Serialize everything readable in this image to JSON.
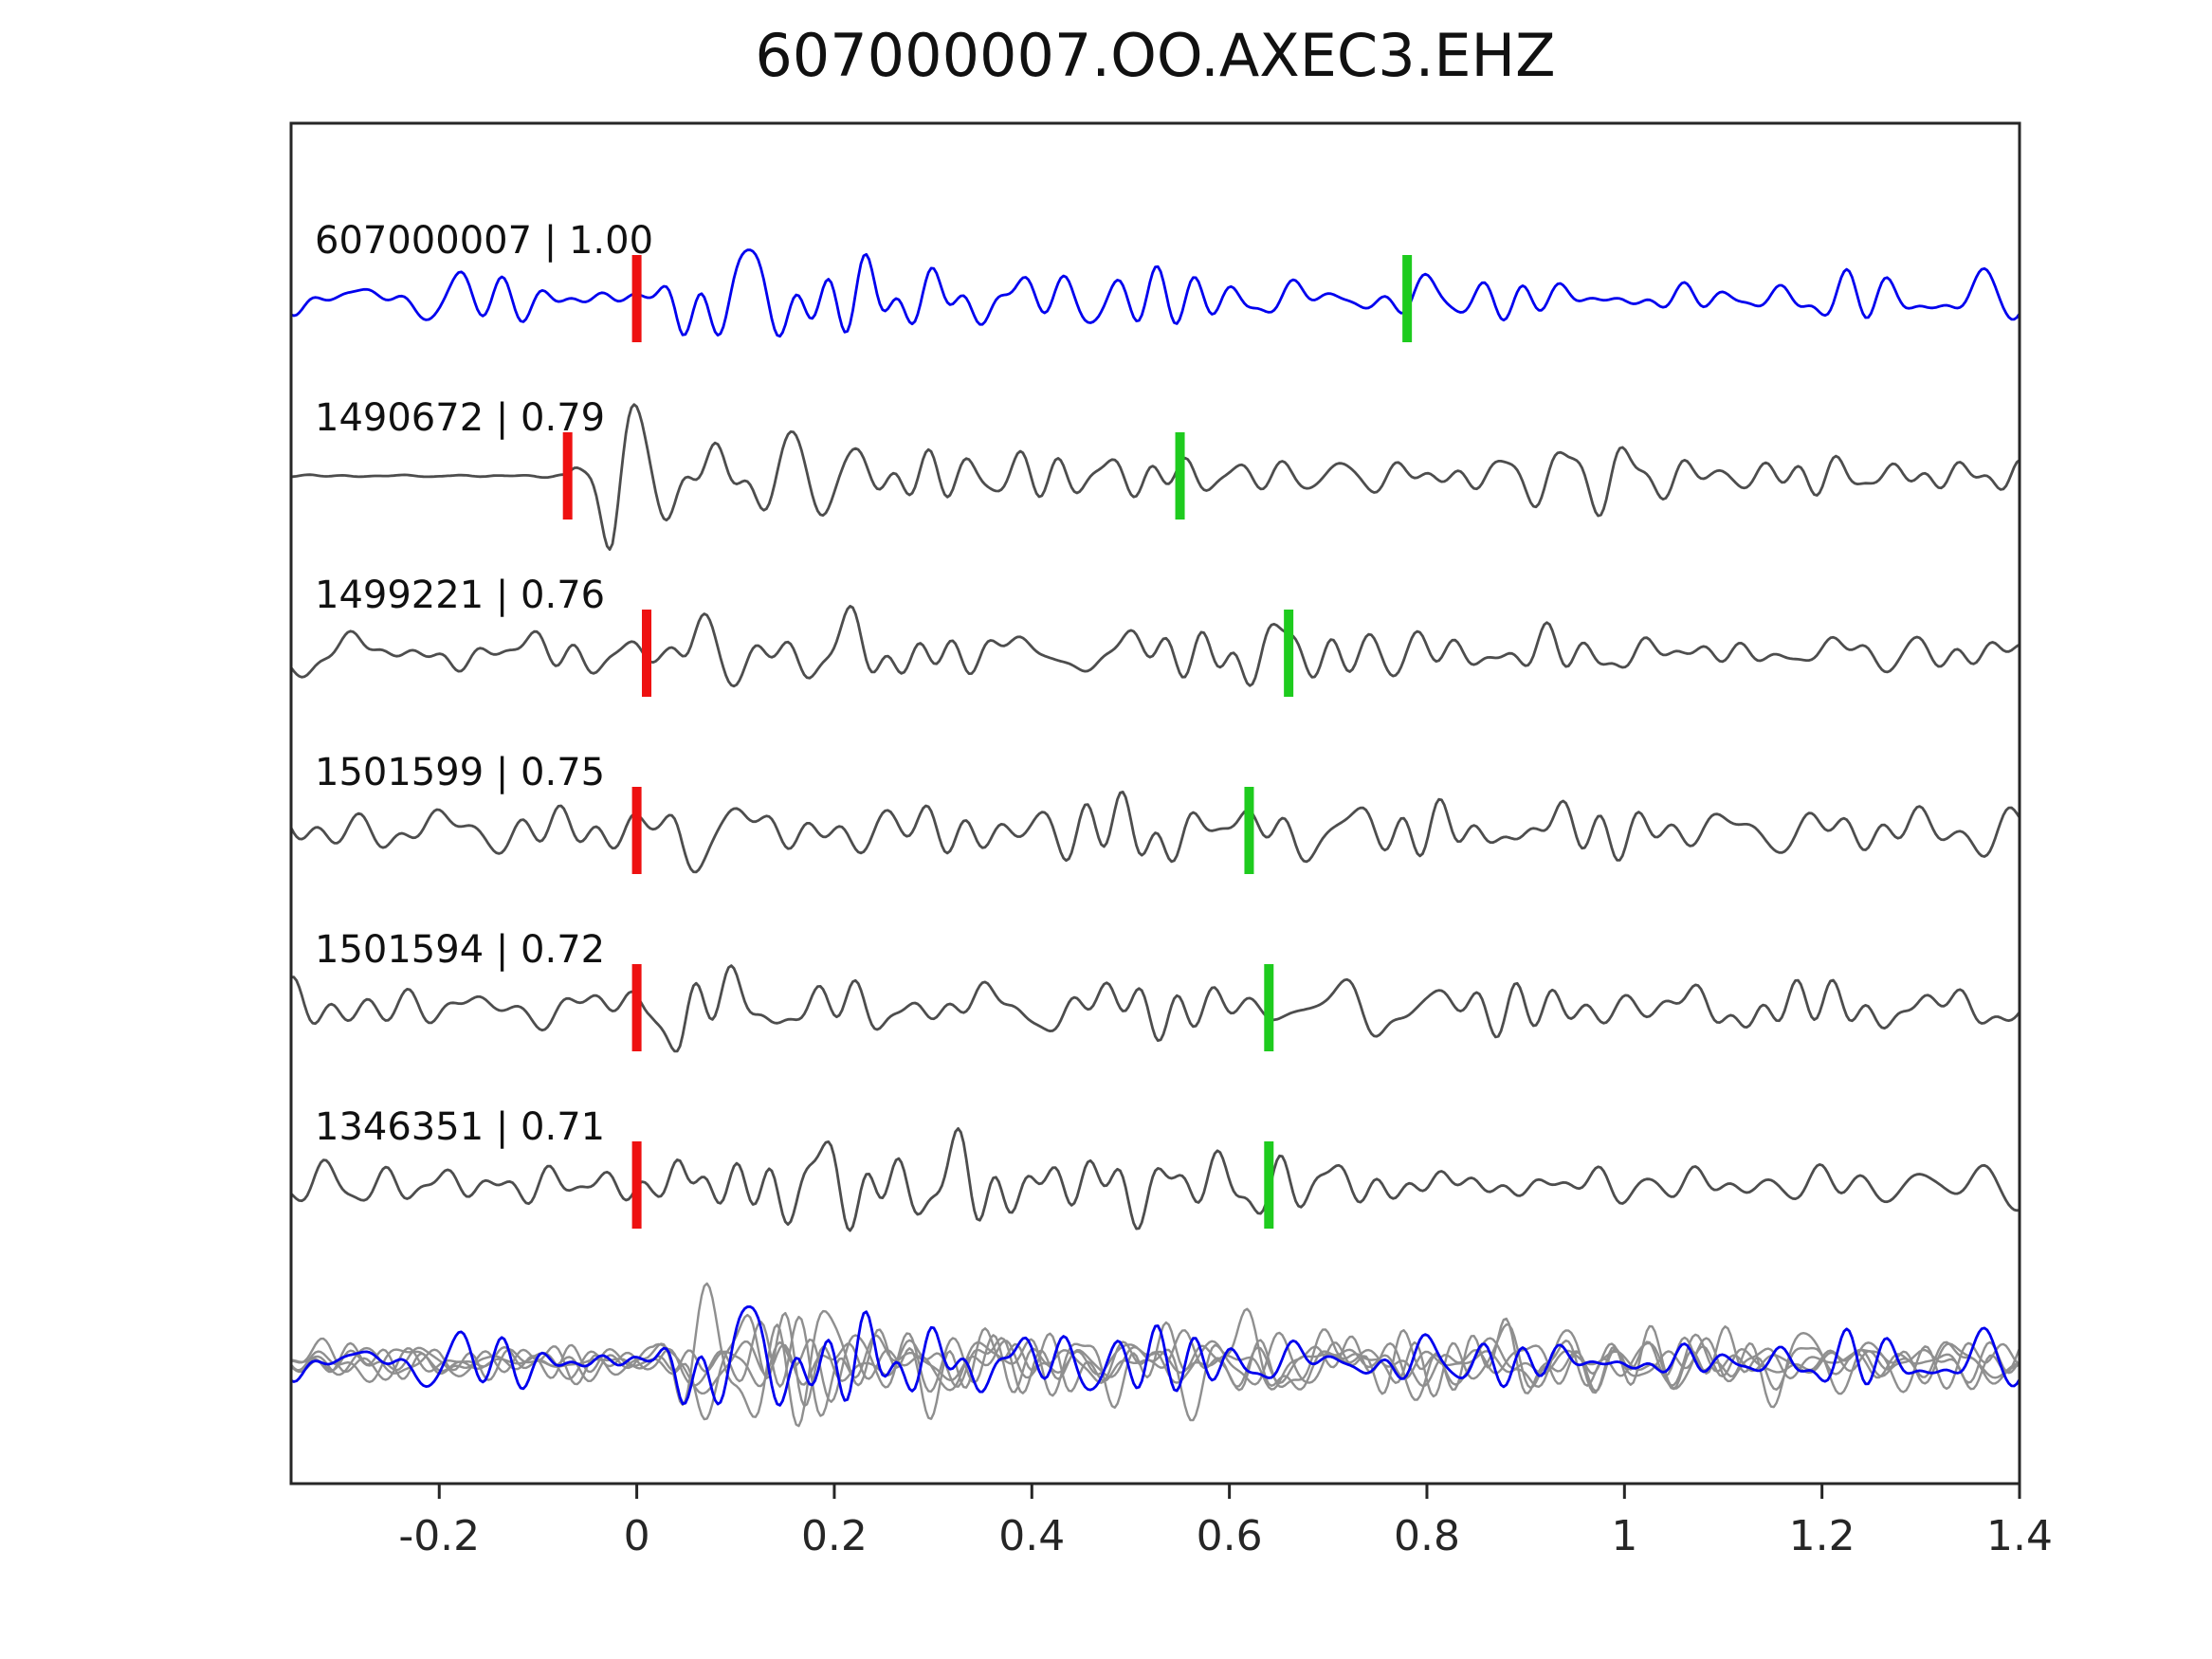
{
  "title": "607000007.OO.AXEC3.EHZ",
  "chart_data": {
    "type": "line",
    "title": "607000007.OO.AXEC3.EHZ",
    "description": "Template-matching seismogram comparison: template waveform (blue) on top, five matched event waveforms (dark gray) below, and all traces superimposed (gray + blue) at the bottom. Red vertical bars mark pick/onset times, green vertical bars mark a secondary pick.",
    "xlim": [
      -0.35,
      1.4
    ],
    "x_ticks": [
      -0.2,
      0,
      0.2,
      0.4,
      0.6,
      0.8,
      1,
      1.2,
      1.4
    ],
    "x_tick_labels": [
      "-0.2",
      "0",
      "0.2",
      "0.4",
      "0.6",
      "0.8",
      "1",
      "1.2",
      "1.4"
    ],
    "grid": false,
    "legend": "none",
    "colors": {
      "template": "#0000ee",
      "match": "#4d4d4d",
      "overlay_gray": "#8f8f8f",
      "pick_red": "#ee1111",
      "pick_green": "#1ecb1e",
      "axis": "#262626",
      "label_text": "#111111"
    },
    "traces": [
      {
        "event_id": "607000007",
        "similarity": 1.0,
        "label": "607000007 | 1.00",
        "role": "template",
        "pick_red_t": 0.0,
        "pick_green_t": 0.78,
        "pre_noise": 0.3
      },
      {
        "event_id": "1490672",
        "similarity": 0.79,
        "label": "1490672 | 0.79",
        "role": "match",
        "pick_red_t": -0.07,
        "pick_green_t": 0.55,
        "pre_noise": 0.02
      },
      {
        "event_id": "1499221",
        "similarity": 0.76,
        "label": "1499221 | 0.76",
        "role": "match",
        "pick_red_t": 0.01,
        "pick_green_t": 0.66,
        "pre_noise": 0.3
      },
      {
        "event_id": "1501599",
        "similarity": 0.75,
        "label": "1501599 | 0.75",
        "role": "match",
        "pick_red_t": 0.0,
        "pick_green_t": 0.62,
        "pre_noise": 0.32
      },
      {
        "event_id": "1501594",
        "similarity": 0.72,
        "label": "1501594 | 0.72",
        "role": "match",
        "pick_red_t": 0.0,
        "pick_green_t": 0.64,
        "pre_noise": 0.3
      },
      {
        "event_id": "1346351",
        "similarity": 0.71,
        "label": "1346351 | 0.71",
        "role": "match",
        "pick_red_t": 0.0,
        "pick_green_t": 0.64,
        "pre_noise": 0.28
      }
    ],
    "overlay": {
      "description": "all traces aligned on onset and superimposed",
      "gray_count": 5,
      "has_template": true
    }
  }
}
